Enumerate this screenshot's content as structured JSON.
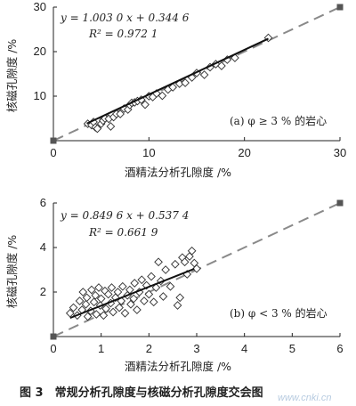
{
  "chart_data": [
    {
      "type": "scatter",
      "xlabel": "酒精法分析孔隙度 /%",
      "ylabel": "核磁孔隙度 /%",
      "xlim": [
        0,
        30
      ],
      "ylim": [
        0,
        30
      ],
      "xticks": [
        "0",
        "10",
        "20",
        "30"
      ],
      "yticks": [
        "10",
        "20",
        "30"
      ],
      "equation": "y = 1.003 0 x + 0.344 6",
      "r2": "R² = 0.972 1",
      "annotation": "(a) φ ≥ 3 % 的岩心",
      "fit": {
        "slope": 1.003,
        "intercept": 0.3446,
        "x_range": [
          3.5,
          22.5
        ]
      },
      "reference_line": {
        "x": [
          0,
          30
        ],
        "y": [
          0,
          30
        ],
        "endpoint_markers": true
      },
      "points": [
        [
          3.6,
          3.8
        ],
        [
          4.0,
          3.5
        ],
        [
          4.2,
          4.2
        ],
        [
          4.4,
          3.0
        ],
        [
          4.6,
          2.7
        ],
        [
          5.0,
          3.8
        ],
        [
          5.2,
          4.5
        ],
        [
          5.4,
          5.0
        ],
        [
          5.8,
          4.9
        ],
        [
          6.0,
          3.2
        ],
        [
          6.3,
          5.3
        ],
        [
          6.6,
          6.0
        ],
        [
          7.0,
          6.0
        ],
        [
          7.4,
          7.2
        ],
        [
          7.8,
          7.0
        ],
        [
          8.0,
          8.0
        ],
        [
          8.2,
          8.5
        ],
        [
          8.5,
          8.6
        ],
        [
          8.8,
          8.9
        ],
        [
          9.2,
          9.2
        ],
        [
          9.6,
          8.1
        ],
        [
          10.0,
          10.0
        ],
        [
          10.4,
          9.8
        ],
        [
          10.8,
          10.6
        ],
        [
          11.4,
          10.1
        ],
        [
          12.0,
          11.5
        ],
        [
          12.5,
          12.0
        ],
        [
          13.2,
          12.8
        ],
        [
          13.8,
          13.0
        ],
        [
          14.5,
          14.2
        ],
        [
          15.0,
          15.2
        ],
        [
          15.8,
          14.8
        ],
        [
          16.4,
          16.5
        ],
        [
          17.0,
          17.2
        ],
        [
          17.6,
          16.8
        ],
        [
          18.2,
          18.2
        ],
        [
          19.0,
          18.6
        ],
        [
          22.5,
          23.1
        ]
      ]
    },
    {
      "type": "scatter",
      "xlabel": "酒精法分析孔隙度 /%",
      "ylabel": "核磁孔隙度 /%",
      "xlim": [
        0,
        6
      ],
      "ylim": [
        0,
        6
      ],
      "xticks": [
        "0",
        "1",
        "2",
        "3",
        "4",
        "5",
        "6"
      ],
      "yticks": [
        "2",
        "4",
        "6"
      ],
      "equation": "y = 0.849 6 x + 0.537 4",
      "r2": "R² = 0.661 9",
      "annotation": "(b) φ < 3 % 的岩心",
      "fit": {
        "slope": 0.8496,
        "intercept": 0.5374,
        "x_range": [
          0.35,
          2.95
        ]
      },
      "reference_line": {
        "x": [
          0,
          6
        ],
        "y": [
          0,
          6
        ],
        "endpoint_markers": true
      },
      "points": [
        [
          0.35,
          1.05
        ],
        [
          0.42,
          1.3
        ],
        [
          0.5,
          0.95
        ],
        [
          0.55,
          1.6
        ],
        [
          0.6,
          1.2
        ],
        [
          0.62,
          2.0
        ],
        [
          0.68,
          1.45
        ],
        [
          0.7,
          1.75
        ],
        [
          0.72,
          0.9
        ],
        [
          0.78,
          1.15
        ],
        [
          0.8,
          2.1
        ],
        [
          0.85,
          1.55
        ],
        [
          0.88,
          1.85
        ],
        [
          0.9,
          1.0
        ],
        [
          0.95,
          2.2
        ],
        [
          0.98,
          1.4
        ],
        [
          1.0,
          1.7
        ],
        [
          1.05,
          0.95
        ],
        [
          1.08,
          2.05
        ],
        [
          1.1,
          1.25
        ],
        [
          1.15,
          1.9
        ],
        [
          1.2,
          1.5
        ],
        [
          1.22,
          2.2
        ],
        [
          1.25,
          1.1
        ],
        [
          1.3,
          1.75
        ],
        [
          1.35,
          2.0
        ],
        [
          1.38,
          1.3
        ],
        [
          1.42,
          1.6
        ],
        [
          1.45,
          2.25
        ],
        [
          1.5,
          1.05
        ],
        [
          1.55,
          1.85
        ],
        [
          1.6,
          2.1
        ],
        [
          1.62,
          1.45
        ],
        [
          1.68,
          1.7
        ],
        [
          1.7,
          2.4
        ],
        [
          1.75,
          1.2
        ],
        [
          1.8,
          2.0
        ],
        [
          1.85,
          2.55
        ],
        [
          1.9,
          1.6
        ],
        [
          1.95,
          2.3
        ],
        [
          2.0,
          1.9
        ],
        [
          2.05,
          2.7
        ],
        [
          2.1,
          1.55
        ],
        [
          2.15,
          2.2
        ],
        [
          2.2,
          3.35
        ],
        [
          2.25,
          2.5
        ],
        [
          2.3,
          1.8
        ],
        [
          2.35,
          3.0
        ],
        [
          2.45,
          2.25
        ],
        [
          2.55,
          3.25
        ],
        [
          2.6,
          1.4
        ],
        [
          2.65,
          1.75
        ],
        [
          2.7,
          3.55
        ],
        [
          2.75,
          3.35
        ],
        [
          2.8,
          2.8
        ],
        [
          2.85,
          3.6
        ],
        [
          2.9,
          3.85
        ],
        [
          2.95,
          3.3
        ],
        [
          3.0,
          3.05
        ]
      ]
    }
  ],
  "caption": "图 3　常规分析孔隙度与核磁分析孔隙度交会图",
  "watermark": "www.cnki.cn"
}
